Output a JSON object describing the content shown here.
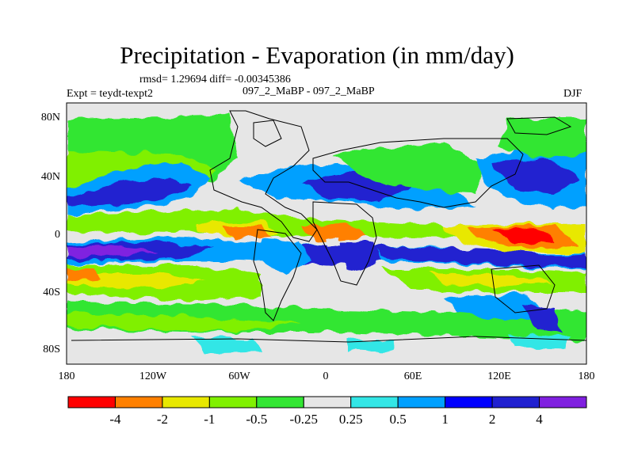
{
  "title": "Precipitation - Evaporation (in mm/day)",
  "stats": "rmsd= 1.29694 diff= -0.00345386",
  "expt": "Expt = teydt-texpt2",
  "case": "097_2_MaBP - 097_2_MaBP",
  "season": "DJF",
  "lat_ticks": [
    "80N",
    "40N",
    "0",
    "40S",
    "80S"
  ],
  "lon_ticks": [
    "180",
    "120W",
    "60W",
    "0",
    "60E",
    "120E",
    "180"
  ],
  "colorbar": {
    "colors": [
      "#ff0000",
      "#ff8000",
      "#e8e800",
      "#80f000",
      "#33e633",
      "#e6e6e6",
      "#33e6e6",
      "#00a0ff",
      "#0000ff",
      "#2020d0",
      "#8020e0"
    ],
    "labels": [
      "-4",
      "-2",
      "-1",
      "-0.5",
      "-0.25",
      "0.25",
      "0.5",
      "1",
      "2",
      "4"
    ]
  }
}
